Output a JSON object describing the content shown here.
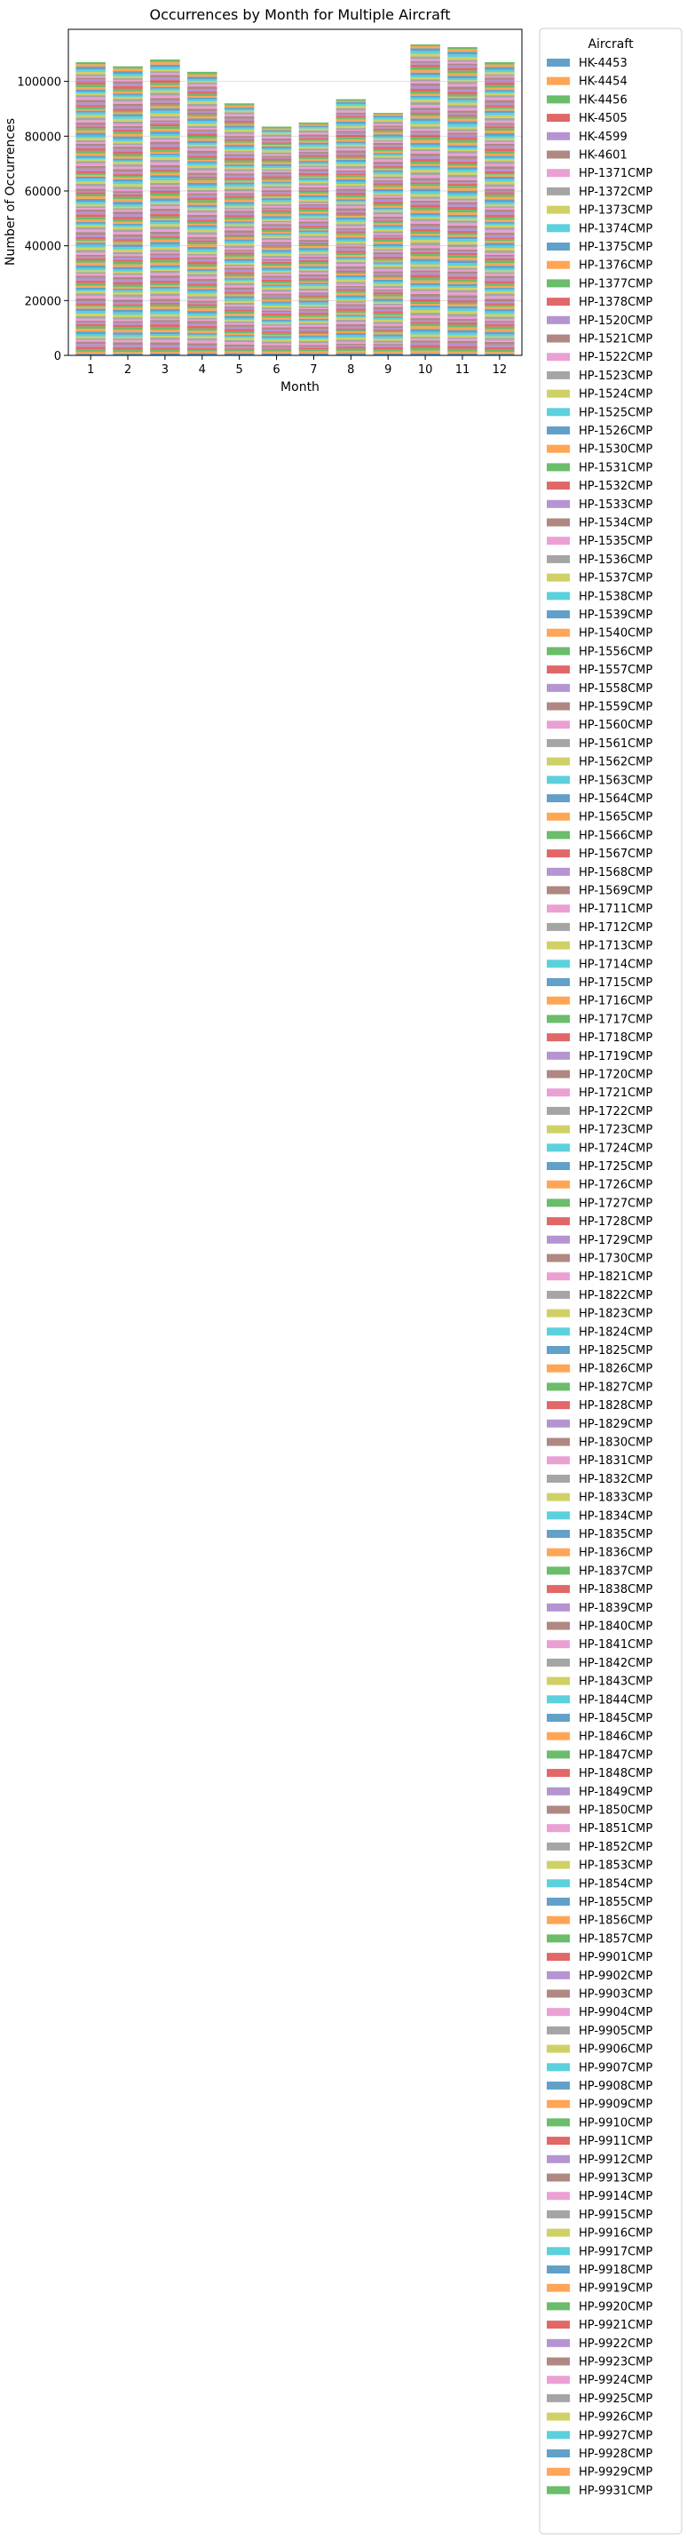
{
  "chart_data": {
    "type": "bar",
    "stacked": true,
    "title": "Occurrences by Month for Multiple Aircraft",
    "xlabel": "Month",
    "ylabel": "Number of Occurrences",
    "categories": [
      "1",
      "2",
      "3",
      "4",
      "5",
      "6",
      "7",
      "8",
      "9",
      "10",
      "11",
      "12"
    ],
    "totals": [
      107000,
      105500,
      108000,
      103500,
      92000,
      83500,
      85000,
      93500,
      88500,
      113500,
      112500,
      107000
    ],
    "ylim": [
      0,
      119000
    ],
    "yticks": [
      0,
      20000,
      40000,
      60000,
      80000,
      100000
    ],
    "ytick_labels": [
      "0",
      "20000",
      "40000",
      "60000",
      "80000",
      "100000"
    ],
    "grid": "horizontal",
    "legend_title": "Aircraft",
    "legend_placement": "outside right",
    "palette": [
      "#1f77b4",
      "#ff7f0e",
      "#2ca02c",
      "#d62728",
      "#9467bd",
      "#8c564b",
      "#e377c2",
      "#7f7f7f",
      "#bcbd22",
      "#17becf"
    ],
    "series": [
      {
        "name": "HK-4453"
      },
      {
        "name": "HK-4454"
      },
      {
        "name": "HK-4456"
      },
      {
        "name": "HK-4505"
      },
      {
        "name": "HK-4599"
      },
      {
        "name": "HK-4601"
      },
      {
        "name": "HP-1371CMP"
      },
      {
        "name": "HP-1372CMP"
      },
      {
        "name": "HP-1373CMP"
      },
      {
        "name": "HP-1374CMP"
      },
      {
        "name": "HP-1375CMP"
      },
      {
        "name": "HP-1376CMP"
      },
      {
        "name": "HP-1377CMP"
      },
      {
        "name": "HP-1378CMP"
      },
      {
        "name": "HP-1520CMP"
      },
      {
        "name": "HP-1521CMP"
      },
      {
        "name": "HP-1522CMP"
      },
      {
        "name": "HP-1523CMP"
      },
      {
        "name": "HP-1524CMP"
      },
      {
        "name": "HP-1525CMP"
      },
      {
        "name": "HP-1526CMP"
      },
      {
        "name": "HP-1530CMP"
      },
      {
        "name": "HP-1531CMP"
      },
      {
        "name": "HP-1532CMP"
      },
      {
        "name": "HP-1533CMP"
      },
      {
        "name": "HP-1534CMP"
      },
      {
        "name": "HP-1535CMP"
      },
      {
        "name": "HP-1536CMP"
      },
      {
        "name": "HP-1537CMP"
      },
      {
        "name": "HP-1538CMP"
      },
      {
        "name": "HP-1539CMP"
      },
      {
        "name": "HP-1540CMP"
      },
      {
        "name": "HP-1556CMP"
      },
      {
        "name": "HP-1557CMP"
      },
      {
        "name": "HP-1558CMP"
      },
      {
        "name": "HP-1559CMP"
      },
      {
        "name": "HP-1560CMP"
      },
      {
        "name": "HP-1561CMP"
      },
      {
        "name": "HP-1562CMP"
      },
      {
        "name": "HP-1563CMP"
      },
      {
        "name": "HP-1564CMP"
      },
      {
        "name": "HP-1565CMP"
      },
      {
        "name": "HP-1566CMP"
      },
      {
        "name": "HP-1567CMP"
      },
      {
        "name": "HP-1568CMP"
      },
      {
        "name": "HP-1569CMP"
      },
      {
        "name": "HP-1711CMP"
      },
      {
        "name": "HP-1712CMP"
      },
      {
        "name": "HP-1713CMP"
      },
      {
        "name": "HP-1714CMP"
      },
      {
        "name": "HP-1715CMP"
      },
      {
        "name": "HP-1716CMP"
      },
      {
        "name": "HP-1717CMP"
      },
      {
        "name": "HP-1718CMP"
      },
      {
        "name": "HP-1719CMP"
      },
      {
        "name": "HP-1720CMP"
      },
      {
        "name": "HP-1721CMP"
      },
      {
        "name": "HP-1722CMP"
      },
      {
        "name": "HP-1723CMP"
      },
      {
        "name": "HP-1724CMP"
      },
      {
        "name": "HP-1725CMP"
      },
      {
        "name": "HP-1726CMP"
      },
      {
        "name": "HP-1727CMP"
      },
      {
        "name": "HP-1728CMP"
      },
      {
        "name": "HP-1729CMP"
      },
      {
        "name": "HP-1730CMP"
      },
      {
        "name": "HP-1821CMP"
      },
      {
        "name": "HP-1822CMP"
      },
      {
        "name": "HP-1823CMP"
      },
      {
        "name": "HP-1824CMP"
      },
      {
        "name": "HP-1825CMP"
      },
      {
        "name": "HP-1826CMP"
      },
      {
        "name": "HP-1827CMP"
      },
      {
        "name": "HP-1828CMP"
      },
      {
        "name": "HP-1829CMP"
      },
      {
        "name": "HP-1830CMP"
      },
      {
        "name": "HP-1831CMP"
      },
      {
        "name": "HP-1832CMP"
      },
      {
        "name": "HP-1833CMP"
      },
      {
        "name": "HP-1834CMP"
      },
      {
        "name": "HP-1835CMP"
      },
      {
        "name": "HP-1836CMP"
      },
      {
        "name": "HP-1837CMP"
      },
      {
        "name": "HP-1838CMP"
      },
      {
        "name": "HP-1839CMP"
      },
      {
        "name": "HP-1840CMP"
      },
      {
        "name": "HP-1841CMP"
      },
      {
        "name": "HP-1842CMP"
      },
      {
        "name": "HP-1843CMP"
      },
      {
        "name": "HP-1844CMP"
      },
      {
        "name": "HP-1845CMP"
      },
      {
        "name": "HP-1846CMP"
      },
      {
        "name": "HP-1847CMP"
      },
      {
        "name": "HP-1848CMP"
      },
      {
        "name": "HP-1849CMP"
      },
      {
        "name": "HP-1850CMP"
      },
      {
        "name": "HP-1851CMP"
      },
      {
        "name": "HP-1852CMP"
      },
      {
        "name": "HP-1853CMP"
      },
      {
        "name": "HP-1854CMP"
      },
      {
        "name": "HP-1855CMP"
      },
      {
        "name": "HP-1856CMP"
      },
      {
        "name": "HP-1857CMP"
      },
      {
        "name": "HP-9901CMP"
      },
      {
        "name": "HP-9902CMP"
      },
      {
        "name": "HP-9903CMP"
      },
      {
        "name": "HP-9904CMP"
      },
      {
        "name": "HP-9905CMP"
      },
      {
        "name": "HP-9906CMP"
      },
      {
        "name": "HP-9907CMP"
      },
      {
        "name": "HP-9908CMP"
      },
      {
        "name": "HP-9909CMP"
      },
      {
        "name": "HP-9910CMP"
      },
      {
        "name": "HP-9911CMP"
      },
      {
        "name": "HP-9912CMP"
      },
      {
        "name": "HP-9913CMP"
      },
      {
        "name": "HP-9914CMP"
      },
      {
        "name": "HP-9915CMP"
      },
      {
        "name": "HP-9916CMP"
      },
      {
        "name": "HP-9917CMP"
      },
      {
        "name": "HP-9918CMP"
      },
      {
        "name": "HP-9919CMP"
      },
      {
        "name": "HP-9920CMP"
      },
      {
        "name": "HP-9921CMP"
      },
      {
        "name": "HP-9922CMP"
      },
      {
        "name": "HP-9923CMP"
      },
      {
        "name": "HP-9924CMP"
      },
      {
        "name": "HP-9925CMP"
      },
      {
        "name": "HP-9926CMP"
      },
      {
        "name": "HP-9927CMP"
      },
      {
        "name": "HP-9928CMP"
      },
      {
        "name": "HP-9929CMP"
      },
      {
        "name": "HP-9931CMP"
      }
    ]
  }
}
